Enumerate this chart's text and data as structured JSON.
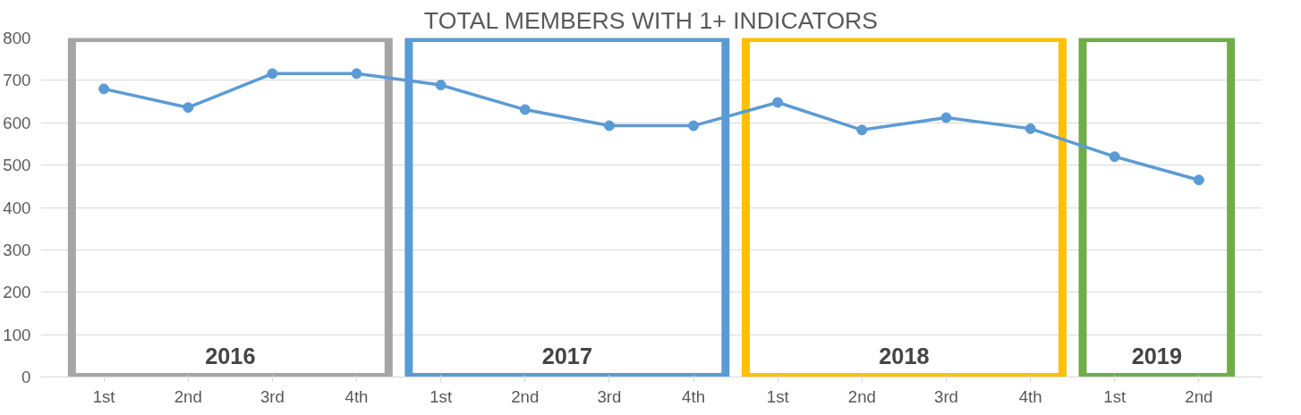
{
  "chart_data": {
    "type": "line",
    "title": "TOTAL MEMBERS WITH 1+ INDICATORS",
    "categories": [
      "1st",
      "2nd",
      "3rd",
      "4th",
      "1st",
      "2nd",
      "3rd",
      "4th",
      "1st",
      "2nd",
      "3rd",
      "4th",
      "1st",
      "2nd"
    ],
    "series": [
      {
        "color": "#5b9bd5",
        "values": [
          680,
          636,
          716,
          716,
          689,
          631,
          593,
          593,
          648,
          583,
          612,
          586,
          520,
          465
        ]
      }
    ],
    "ylim": [
      0,
      800
    ],
    "yticks": [
      0,
      100,
      200,
      300,
      400,
      500,
      600,
      700,
      800
    ],
    "grid": "y",
    "marker": "circle",
    "line_style": "solid",
    "annotations": [
      "2016",
      "2017",
      "2018",
      "2019"
    ]
  }
}
